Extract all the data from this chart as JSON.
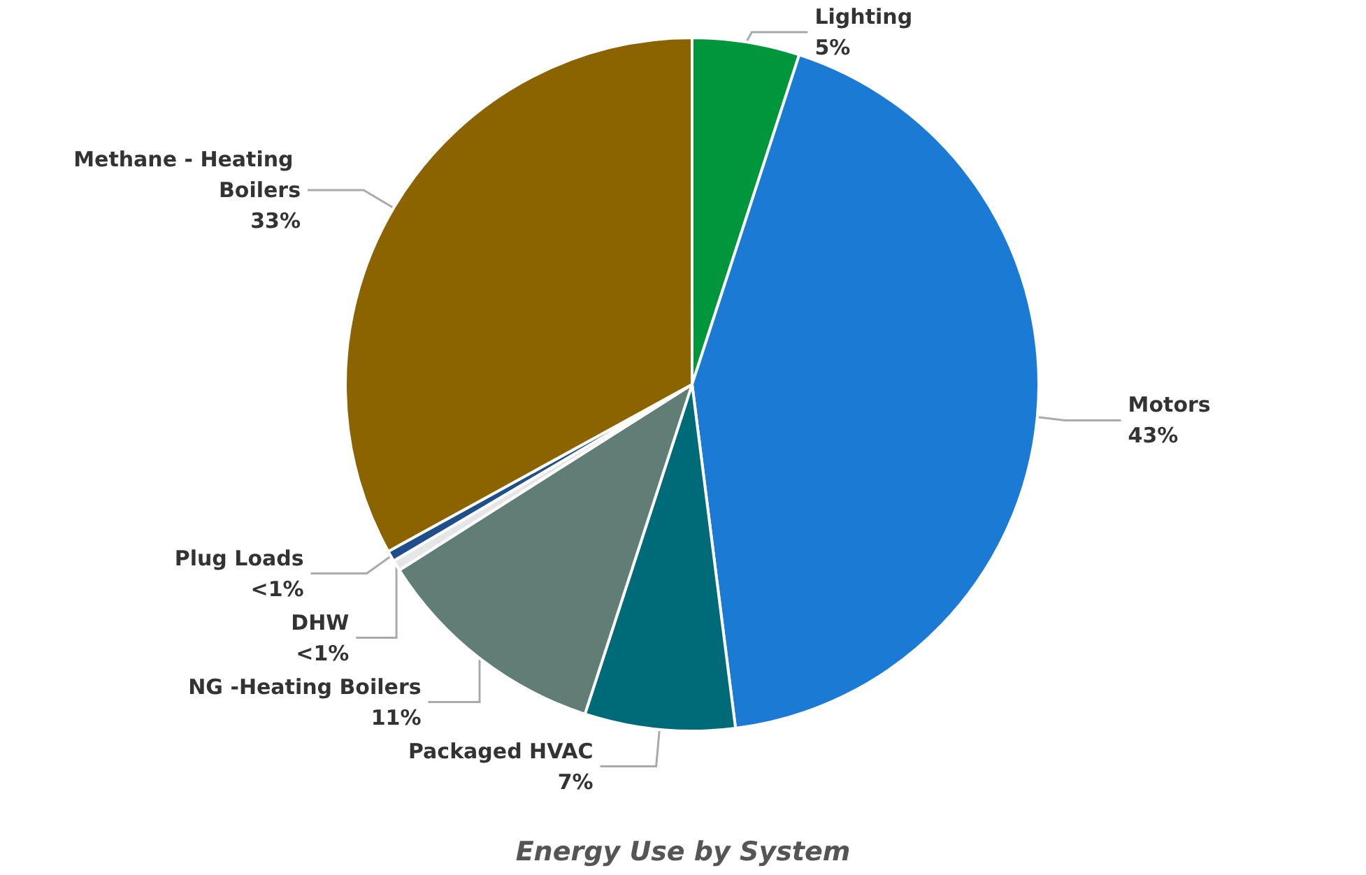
{
  "chart_data": {
    "type": "pie",
    "title": "Energy Use by System",
    "categories": [
      "Lighting",
      "Motors",
      "Packaged HVAC",
      "NG -Heating Boilers",
      "DHW",
      "Plug Loads",
      "Methane - Heating Boilers"
    ],
    "values": [
      5,
      43,
      7,
      11,
      0.5,
      0.5,
      33
    ],
    "value_labels": [
      "5%",
      "43%",
      "7%",
      "11%",
      "<1%",
      "<1%",
      "33%"
    ],
    "colors": [
      "#00963c",
      "#1a7ad4",
      "#006b78",
      "#607d76",
      "#e6e6e6",
      "#1f4e8c",
      "#8b6400"
    ],
    "legend": false
  }
}
